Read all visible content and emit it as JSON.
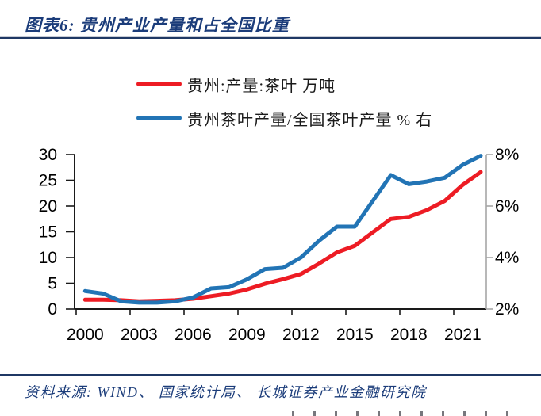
{
  "header": {
    "title": "图表6:  贵州产业产量和占全国比重"
  },
  "legend": [
    {
      "label": "贵州:产量:茶叶 万吨",
      "color": "#ed1c24"
    },
    {
      "label": "贵州茶叶产量/全国茶叶产量 % 右",
      "color": "#2274b5"
    }
  ],
  "footer": {
    "source": "资料来源: WIND、 国家统计局、 长城证券产业金融研究院"
  },
  "colors": {
    "accent_navy": "#1b3c7a",
    "rule": "#1f3864",
    "axis_black": "#1a1a1a",
    "axis_gray": "#a6a6a6",
    "series_red": "#ed1c24",
    "series_blue": "#2274b5"
  },
  "chart_data": {
    "type": "line",
    "title": "贵州产业产量和占全国比重",
    "x": [
      2000,
      2001,
      2002,
      2003,
      2004,
      2005,
      2006,
      2007,
      2008,
      2009,
      2010,
      2011,
      2012,
      2013,
      2014,
      2015,
      2016,
      2017,
      2018,
      2019,
      2020,
      2021,
      2022
    ],
    "series": [
      {
        "name": "贵州:产量:茶叶 万吨",
        "axis": "left",
        "color": "#ed1c24",
        "values": [
          1.8,
          1.8,
          1.7,
          1.5,
          1.6,
          1.7,
          2.0,
          2.5,
          3.0,
          3.8,
          4.9,
          5.8,
          6.8,
          8.8,
          11.0,
          12.3,
          14.9,
          17.5,
          17.9,
          19.2,
          21.0,
          24.1,
          26.6
        ]
      },
      {
        "name": "贵州茶叶产量/全国茶叶产量 % 右",
        "axis": "right",
        "color": "#2274b5",
        "values": [
          2.7,
          2.6,
          2.3,
          2.25,
          2.25,
          2.3,
          2.45,
          2.8,
          2.85,
          3.15,
          3.55,
          3.6,
          4.0,
          4.65,
          5.2,
          5.2,
          6.2,
          7.2,
          6.85,
          6.95,
          7.1,
          7.6,
          7.95
        ]
      }
    ],
    "left_axis": {
      "ticks": [
        0,
        5,
        10,
        15,
        20,
        25,
        30
      ],
      "tick_labels": [
        "0",
        "5",
        "10",
        "15",
        "20",
        "25",
        "30"
      ],
      "range": [
        0,
        30
      ]
    },
    "right_axis": {
      "ticks": [
        2,
        4,
        6,
        8
      ],
      "tick_labels": [
        "2%",
        "4%",
        "6%",
        "8%"
      ],
      "range": [
        2,
        8
      ]
    },
    "x_axis": {
      "tick_years": [
        2000,
        2003,
        2006,
        2009,
        2012,
        2015,
        2018,
        2021
      ],
      "tick_labels": [
        "2000",
        "2003",
        "2006",
        "2009",
        "2012",
        "2015",
        "2018",
        "2021"
      ]
    },
    "grid": false,
    "legend_position": "top"
  }
}
